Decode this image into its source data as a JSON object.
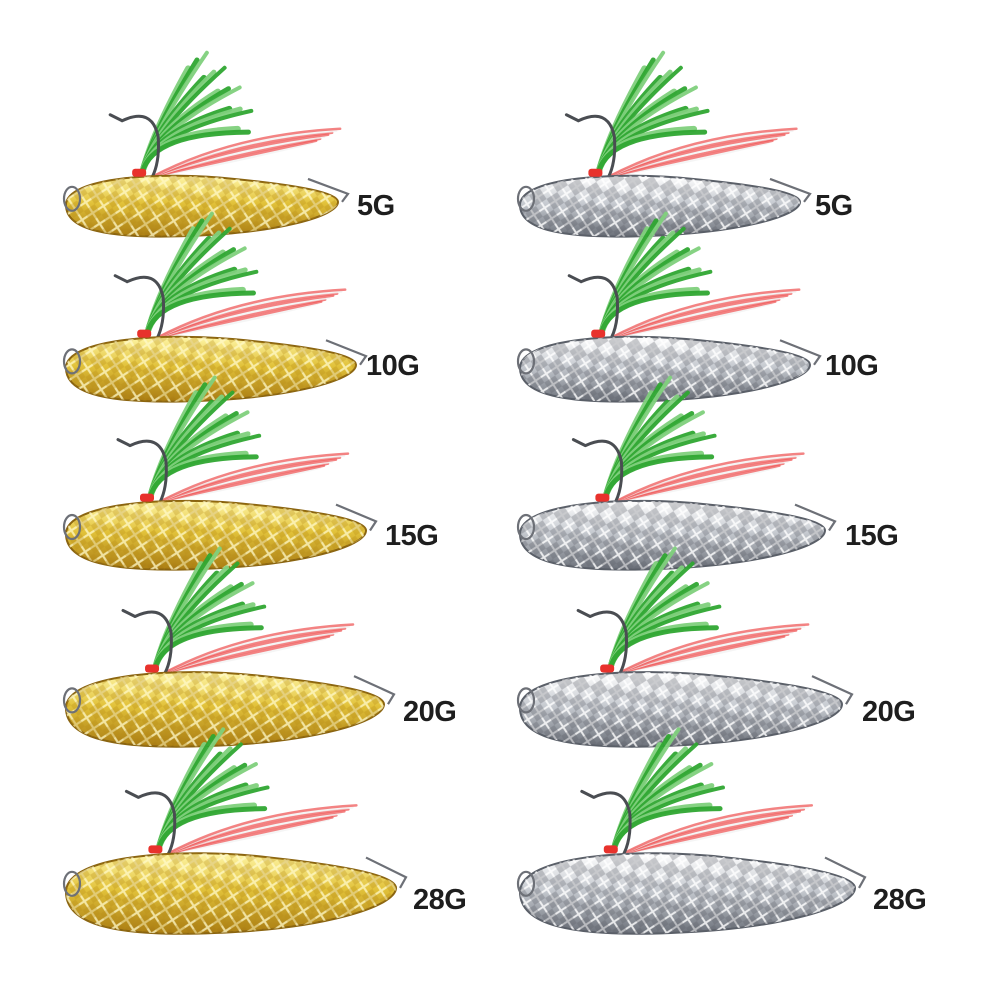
{
  "image": {
    "subject": "Spoon fishing lures with treble hook and green/red feather tail",
    "finishes": [
      {
        "name": "gold",
        "color_light": "#fff6a6",
        "color_mid": "#e2c23a",
        "color_dark": "#a87a12"
      },
      {
        "name": "silver",
        "color_light": "#ffffff",
        "color_mid": "#c7cbd1",
        "color_dark": "#6b7079"
      }
    ],
    "feather_colors": {
      "green": "#2fa632",
      "green_light": "#7fd07c",
      "red": "#ef5a5a",
      "white": "#f2f2f2",
      "thread": "#e8322c"
    }
  },
  "lures": [
    {
      "finish": "gold",
      "weight": "5G"
    },
    {
      "finish": "gold",
      "weight": "10G"
    },
    {
      "finish": "gold",
      "weight": "15G"
    },
    {
      "finish": "gold",
      "weight": "20G"
    },
    {
      "finish": "gold",
      "weight": "28G"
    },
    {
      "finish": "silver",
      "weight": "5G"
    },
    {
      "finish": "silver",
      "weight": "10G"
    },
    {
      "finish": "silver",
      "weight": "15G"
    },
    {
      "finish": "silver",
      "weight": "20G"
    },
    {
      "finish": "silver",
      "weight": "28G"
    }
  ]
}
